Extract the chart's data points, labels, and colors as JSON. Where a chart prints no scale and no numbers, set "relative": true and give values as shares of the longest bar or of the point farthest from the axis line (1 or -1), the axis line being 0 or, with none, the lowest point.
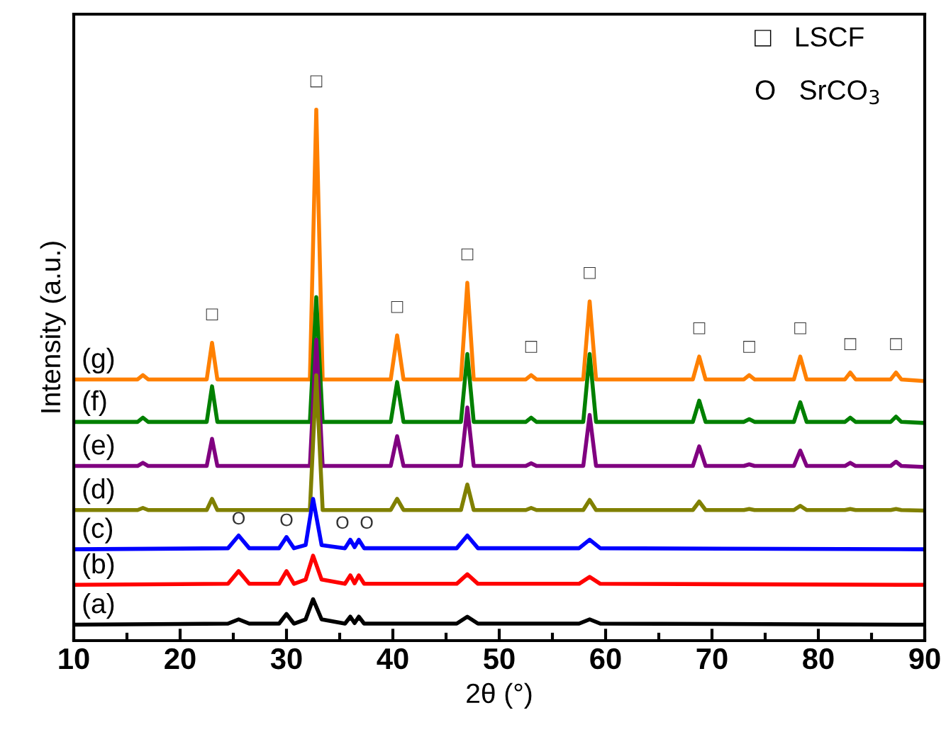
{
  "chart_data": {
    "type": "line",
    "relative": true,
    "xlabel": "2θ (°)",
    "ylabel": "Intensity (a.u.)",
    "xlim": [
      10,
      90
    ],
    "xticks": [
      10,
      20,
      30,
      40,
      50,
      60,
      70,
      80,
      90
    ],
    "grid": false,
    "legend": false,
    "marker": "none",
    "line_style": "solid",
    "series": [
      {
        "name": "(g)",
        "color": "#ff8000",
        "x": [
          10,
          16,
          16.5,
          17,
          22.5,
          23,
          23.5,
          32.2,
          32.8,
          33.4,
          39.8,
          40.4,
          41,
          46.4,
          47,
          47.6,
          52.5,
          53,
          53.5,
          57.9,
          58.5,
          59.1,
          68.2,
          68.8,
          69.4,
          73,
          73.5,
          74,
          77.7,
          78.3,
          78.9,
          82.5,
          83,
          83.5,
          86.8,
          87.3,
          87.8,
          90
        ],
        "values": [
          0.492,
          0.492,
          0.5,
          0.492,
          0.492,
          0.561,
          0.492,
          0.492,
          1.0,
          0.492,
          0.492,
          0.575,
          0.492,
          0.492,
          0.674,
          0.492,
          0.492,
          0.5,
          0.492,
          0.492,
          0.639,
          0.492,
          0.492,
          0.535,
          0.492,
          0.492,
          0.5,
          0.492,
          0.492,
          0.535,
          0.492,
          0.492,
          0.505,
          0.492,
          0.492,
          0.505,
          0.492,
          0.489
        ]
      },
      {
        "name": "(f)",
        "color": "#008000",
        "x": [
          10,
          16,
          16.5,
          17,
          22.5,
          23,
          23.5,
          32.2,
          32.8,
          33.4,
          39.8,
          40.4,
          41,
          46.4,
          47,
          47.6,
          52.5,
          53,
          53.5,
          57.9,
          58.5,
          59.1,
          68.2,
          68.8,
          69.4,
          73,
          73.5,
          74,
          77.7,
          78.3,
          78.9,
          82.5,
          83,
          83.5,
          86.8,
          87.3,
          87.8,
          90
        ],
        "values": [
          0.412,
          0.412,
          0.42,
          0.412,
          0.412,
          0.479,
          0.412,
          0.412,
          0.647,
          0.412,
          0.412,
          0.487,
          0.412,
          0.412,
          0.54,
          0.412,
          0.412,
          0.42,
          0.412,
          0.412,
          0.54,
          0.412,
          0.412,
          0.452,
          0.412,
          0.412,
          0.417,
          0.412,
          0.412,
          0.449,
          0.412,
          0.412,
          0.42,
          0.412,
          0.412,
          0.422,
          0.412,
          0.41
        ]
      },
      {
        "name": "(e)",
        "color": "#800080",
        "x": [
          10,
          16,
          16.5,
          17,
          22.5,
          23,
          23.5,
          32.2,
          32.8,
          33.4,
          39.8,
          40.4,
          41,
          46.4,
          47,
          47.6,
          52.5,
          53,
          53.5,
          57.9,
          58.5,
          59.1,
          68.2,
          68.8,
          69.4,
          73,
          73.5,
          74,
          77.7,
          78.3,
          78.9,
          82.5,
          83,
          83.5,
          86.8,
          87.3,
          87.8,
          90
        ],
        "values": [
          0.329,
          0.329,
          0.335,
          0.329,
          0.329,
          0.38,
          0.329,
          0.329,
          0.567,
          0.329,
          0.329,
          0.385,
          0.329,
          0.329,
          0.439,
          0.329,
          0.329,
          0.334,
          0.329,
          0.329,
          0.425,
          0.329,
          0.329,
          0.366,
          0.329,
          0.329,
          0.332,
          0.329,
          0.329,
          0.358,
          0.329,
          0.329,
          0.335,
          0.329,
          0.329,
          0.337,
          0.329,
          0.327
        ]
      },
      {
        "name": "(d)",
        "color": "#808000",
        "x": [
          10,
          16,
          16.5,
          17,
          22.5,
          23,
          23.5,
          32.2,
          32.8,
          33.4,
          39.8,
          40.4,
          41,
          46.4,
          47,
          47.6,
          52.5,
          53,
          53.5,
          57.9,
          58.5,
          59.1,
          68.2,
          68.8,
          69.4,
          73,
          73.5,
          74,
          77.7,
          78.3,
          78.9,
          82.5,
          83,
          83.5,
          86.8,
          87.3,
          87.8,
          90
        ],
        "values": [
          0.246,
          0.246,
          0.25,
          0.246,
          0.246,
          0.267,
          0.246,
          0.246,
          0.5,
          0.246,
          0.246,
          0.267,
          0.246,
          0.246,
          0.294,
          0.246,
          0.246,
          0.25,
          0.246,
          0.246,
          0.265,
          0.246,
          0.246,
          0.262,
          0.246,
          0.246,
          0.248,
          0.246,
          0.246,
          0.254,
          0.246,
          0.246,
          0.248,
          0.246,
          0.246,
          0.248,
          0.246,
          0.245
        ]
      },
      {
        "name": "(c)",
        "color": "#0000ff",
        "x": [
          10,
          24.5,
          25.5,
          26.5,
          29.3,
          30,
          30.7,
          31.8,
          32.5,
          33.3,
          35.5,
          36,
          36.4,
          36.8,
          37.3,
          46,
          47,
          48,
          57.5,
          58.5,
          59.5,
          90
        ],
        "values": [
          0.172,
          0.174,
          0.198,
          0.174,
          0.174,
          0.195,
          0.174,
          0.18,
          0.267,
          0.18,
          0.174,
          0.19,
          0.176,
          0.19,
          0.174,
          0.174,
          0.198,
          0.174,
          0.174,
          0.19,
          0.174,
          0.172
        ]
      },
      {
        "name": "(b)",
        "color": "#ff0000",
        "x": [
          10,
          24.5,
          25.5,
          26.5,
          29.3,
          30,
          30.7,
          31.8,
          32.5,
          33.3,
          35.5,
          36,
          36.4,
          36.8,
          37.3,
          46,
          47,
          48,
          57.5,
          58.5,
          59.5,
          90
        ],
        "values": [
          0.105,
          0.107,
          0.131,
          0.107,
          0.107,
          0.131,
          0.107,
          0.115,
          0.16,
          0.115,
          0.107,
          0.123,
          0.108,
          0.123,
          0.107,
          0.107,
          0.125,
          0.107,
          0.107,
          0.12,
          0.107,
          0.105
        ]
      },
      {
        "name": "(a)",
        "color": "#000000",
        "x": [
          10,
          24.5,
          25.5,
          26.5,
          29.3,
          30,
          30.7,
          31.8,
          32.5,
          33.3,
          35.5,
          36,
          36.4,
          36.8,
          37.3,
          46,
          47,
          48,
          57.5,
          58.5,
          59.5,
          90
        ],
        "values": [
          0.03,
          0.032,
          0.04,
          0.032,
          0.032,
          0.05,
          0.032,
          0.04,
          0.078,
          0.04,
          0.032,
          0.045,
          0.033,
          0.045,
          0.032,
          0.032,
          0.045,
          0.032,
          0.032,
          0.04,
          0.032,
          0.03
        ]
      }
    ],
    "annotations": [
      "□   LSCF",
      "O   SrCO$_{3}$",
      {
        "text": "□",
        "x": 23,
        "y": 0.561
      },
      {
        "text": "□",
        "x": 32.8,
        "y": 1.0
      },
      {
        "text": "□",
        "x": 40.4,
        "y": 0.575
      },
      {
        "text": "□",
        "x": 47,
        "y": 0.674
      },
      {
        "text": "□",
        "x": 53,
        "y": 0.5
      },
      {
        "text": "□",
        "x": 58.5,
        "y": 0.639
      },
      {
        "text": "□",
        "x": 68.8,
        "y": 0.535
      },
      {
        "text": "□",
        "x": 73.5,
        "y": 0.5
      },
      {
        "text": "□",
        "x": 78.3,
        "y": 0.535
      },
      {
        "text": "□",
        "x": 83,
        "y": 0.505
      },
      {
        "text": "□",
        "x": 87.3,
        "y": 0.505
      },
      {
        "text": "O",
        "x": 25.5,
        "y": 0.198
      },
      {
        "text": "O",
        "x": 30,
        "y": 0.195
      },
      {
        "text": "O",
        "x": 36,
        "y": 0.19
      },
      {
        "text": "O",
        "x": 36.8,
        "y": 0.19
      }
    ]
  }
}
